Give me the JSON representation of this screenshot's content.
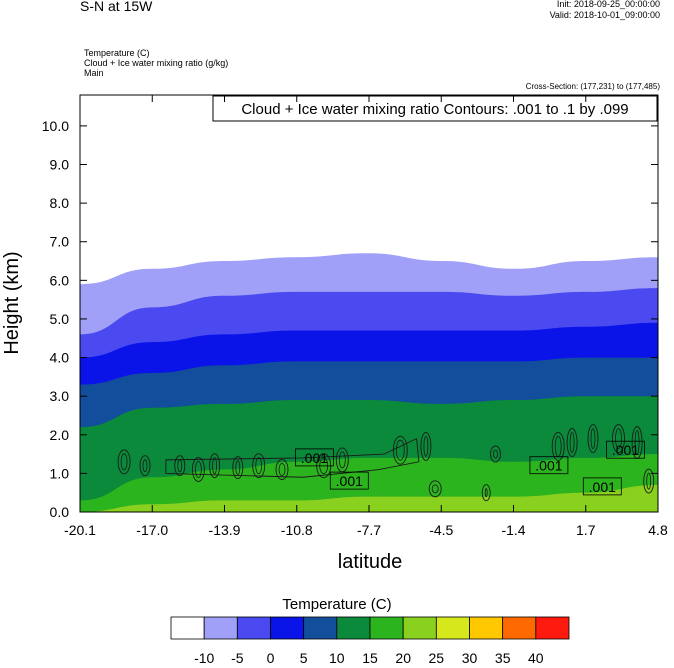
{
  "header": {
    "title": "S-N at 15W",
    "init": "Init: 2018-09-25_00:00:00",
    "valid": "Valid: 2018-10-01_09:00:00",
    "fields": [
      "Temperature   (C)",
      "Cloud + Ice water mixing ratio   (g/kg)",
      "Main"
    ],
    "cross_section": "Cross-Section: (177,231) to (177,485)"
  },
  "chart_data": {
    "type": "heatmap",
    "title": "",
    "contour_label": "Cloud + Ice water mixing ratio Contours: .001 to .1 by .099",
    "xlabel": "latitude",
    "ylabel": "Height (km)",
    "xlim": [
      -20.1,
      4.8
    ],
    "ylim": [
      0,
      10.8
    ],
    "x_ticks": [
      "-20.1",
      "-17.0",
      "-13.9",
      "-10.8",
      "-7.7",
      "-4.5",
      "-1.4",
      "1.7",
      "4.8"
    ],
    "y_ticks": [
      "0.0",
      "1.0",
      "2.0",
      "3.0",
      "4.0",
      "5.0",
      "6.0",
      "7.0",
      "8.0",
      "9.0",
      "10.0"
    ],
    "colorbar": {
      "title": "Temperature  (C)",
      "levels": [
        "-10",
        "-5",
        "0",
        "5",
        "10",
        "15",
        "20",
        "25",
        "30",
        "35",
        "40"
      ],
      "colors": [
        "#ffffff",
        "#a0a0f8",
        "#4a4af0",
        "#0a14e8",
        "#124e9c",
        "#0a8a3a",
        "#2cb41e",
        "#8ad01e",
        "#d6e81c",
        "#ffc800",
        "#ff6a00",
        "#ff1a10"
      ]
    },
    "isotherm_heights_km": [
      {
        "level": -10,
        "x": [
          -20.1,
          -17.0,
          -13.9,
          -10.8,
          -7.7,
          -4.5,
          -1.4,
          1.7,
          4.8
        ],
        "y": [
          5.9,
          6.3,
          6.5,
          6.6,
          6.7,
          6.5,
          6.3,
          6.5,
          6.6
        ]
      },
      {
        "level": -5,
        "x": [
          -20.1,
          -17.0,
          -13.9,
          -10.8,
          -7.7,
          -4.5,
          -1.4,
          1.7,
          4.8
        ],
        "y": [
          4.6,
          5.3,
          5.6,
          5.7,
          5.7,
          5.7,
          5.6,
          5.7,
          5.8
        ]
      },
      {
        "level": 0,
        "x": [
          -20.1,
          -17.0,
          -13.9,
          -10.8,
          -7.7,
          -4.5,
          -1.4,
          1.7,
          4.8
        ],
        "y": [
          4.0,
          4.4,
          4.6,
          4.7,
          4.7,
          4.7,
          4.7,
          4.8,
          4.9
        ]
      },
      {
        "level": 5,
        "x": [
          -20.1,
          -17.0,
          -13.9,
          -10.8,
          -7.7,
          -4.5,
          -1.4,
          1.7,
          4.8
        ],
        "y": [
          3.3,
          3.6,
          3.8,
          3.9,
          3.9,
          3.9,
          3.9,
          4.0,
          4.0
        ]
      },
      {
        "level": 10,
        "x": [
          -20.1,
          -17.0,
          -13.9,
          -10.8,
          -7.7,
          -4.5,
          -1.4,
          1.7,
          4.8
        ],
        "y": [
          2.2,
          2.7,
          2.8,
          2.9,
          2.9,
          2.8,
          2.9,
          3.0,
          3.0
        ]
      },
      {
        "level": 15,
        "x": [
          -20.1,
          -17.0,
          -13.9,
          -10.8,
          -7.7,
          -4.5,
          -1.4,
          1.7,
          4.8
        ],
        "y": [
          0.3,
          0.9,
          1.1,
          1.3,
          1.4,
          1.4,
          1.3,
          1.4,
          1.5
        ]
      },
      {
        "level": 20,
        "x": [
          -20.1,
          -17.0,
          -13.9,
          -10.8,
          -7.7,
          -4.5,
          -1.4,
          1.7,
          4.8
        ],
        "y": [
          0.0,
          0.2,
          0.3,
          0.3,
          0.4,
          0.4,
          0.4,
          0.5,
          0.7
        ]
      }
    ],
    "contour_labels": [
      {
        "text": ".001",
        "x": -10.0,
        "y": 1.4
      },
      {
        "text": ".001",
        "x": -8.5,
        "y": 0.8
      },
      {
        "text": ".001",
        "x": 0.1,
        "y": 1.2
      },
      {
        "text": ".001",
        "x": 2.4,
        "y": 0.65
      },
      {
        "text": ".001",
        "x": 3.4,
        "y": 1.6
      }
    ]
  }
}
